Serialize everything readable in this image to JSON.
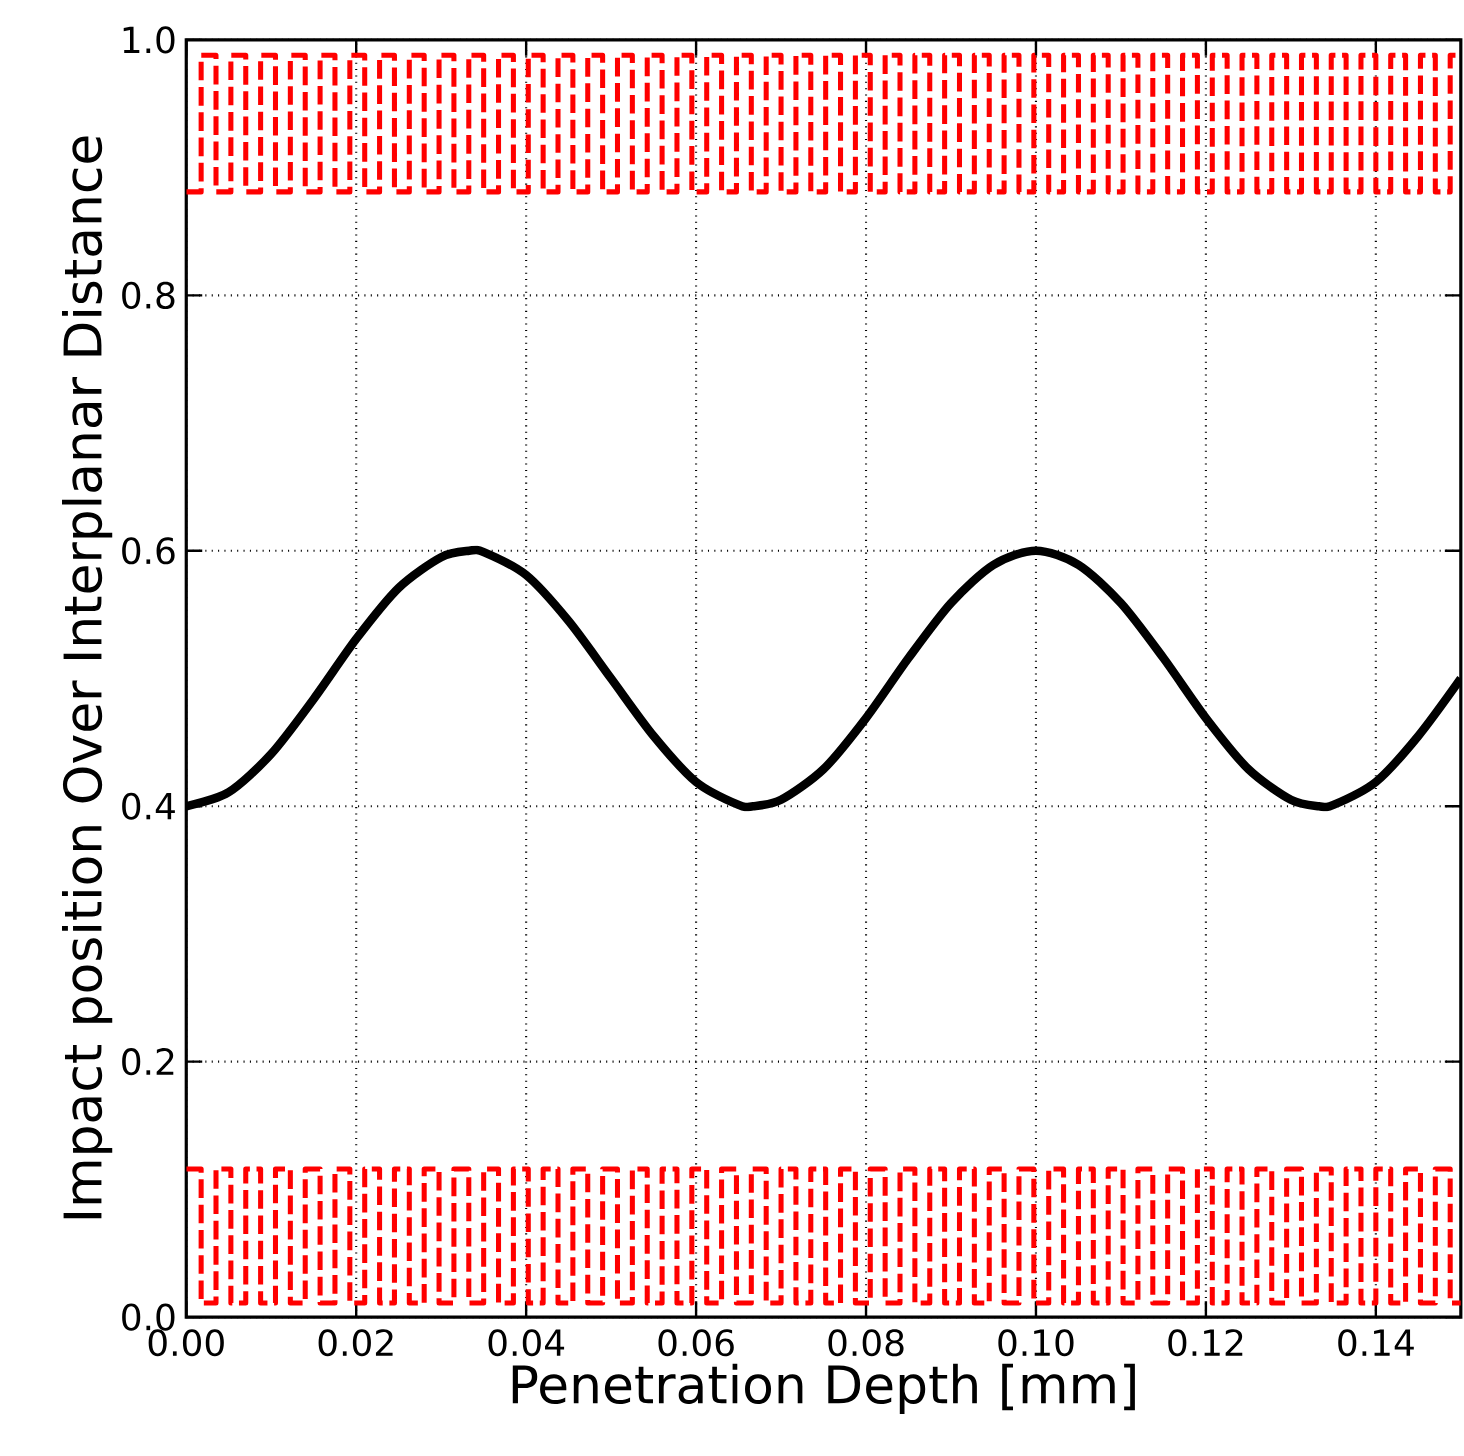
{
  "chart_data": {
    "type": "line",
    "xlabel": "Penetration Depth [mm]",
    "ylabel": "Impact position Over Interplanar Distance",
    "xlim": [
      0,
      0.15
    ],
    "ylim": [
      0,
      1
    ],
    "xticks": [
      {
        "value": 0,
        "label": "0.00"
      },
      {
        "value": 0.02,
        "label": "0.02"
      },
      {
        "value": 0.04,
        "label": "0.04"
      },
      {
        "value": 0.06,
        "label": "0.06"
      },
      {
        "value": 0.08,
        "label": "0.08"
      },
      {
        "value": 0.1,
        "label": "0.10"
      },
      {
        "value": 0.12,
        "label": "0.12"
      },
      {
        "value": 0.14,
        "label": "0.14"
      }
    ],
    "yticks": [
      {
        "value": 0,
        "label": "0.0"
      },
      {
        "value": 0.2,
        "label": "0.2"
      },
      {
        "value": 0.4,
        "label": "0.4"
      },
      {
        "value": 0.6,
        "label": "0.6"
      },
      {
        "value": 0.8,
        "label": "0.8"
      },
      {
        "value": 1,
        "label": "1.0"
      }
    ],
    "grid": true,
    "series": [
      {
        "type": "step",
        "color": "#ff0000",
        "line_style": "dashed",
        "x": [
          0,
          0.00175,
          0.0035,
          0.00525,
          0.007,
          0.00875,
          0.0105,
          0.01225,
          0.014,
          0.01575,
          0.0175,
          0.01925,
          0.021,
          0.02275,
          0.0245,
          0.02625,
          0.028,
          0.02975,
          0.0315,
          0.03325,
          0.035,
          0.03675,
          0.0385,
          0.04025,
          0.042,
          0.04375,
          0.0455,
          0.04725,
          0.049,
          0.05075,
          0.0525,
          0.05425,
          0.056,
          0.05775,
          0.0595,
          0.06125,
          0.063,
          0.06475,
          0.0665,
          0.06825,
          0.07,
          0.07175,
          0.0735,
          0.07525,
          0.077,
          0.07875,
          0.0805,
          0.08225,
          0.084,
          0.08575,
          0.0875,
          0.08925,
          0.091,
          0.09275,
          0.0945,
          0.09625,
          0.098,
          0.09975,
          0.1015,
          0.10325,
          0.105,
          0.10675,
          0.1085,
          0.11025,
          0.112,
          0.11375,
          0.1155,
          0.11725,
          0.119,
          0.12075,
          0.1225,
          0.12425,
          0.126,
          0.12775,
          0.1295,
          0.13125,
          0.133,
          0.13475,
          0.1365,
          0.13825,
          0.14,
          0.14175,
          0.1435,
          0.14525,
          0.147,
          0.14875,
          0.15
        ],
        "values": [
          0.881,
          0.988,
          0.881,
          0.988,
          0.881,
          0.988,
          0.881,
          0.988,
          0.881,
          0.988,
          0.881,
          0.988,
          0.881,
          0.988,
          0.881,
          0.988,
          0.881,
          0.988,
          0.881,
          0.988,
          0.881,
          0.988,
          0.881,
          0.988,
          0.881,
          0.988,
          0.881,
          0.988,
          0.881,
          0.988,
          0.881,
          0.988,
          0.881,
          0.988,
          0.881,
          0.988,
          0.881,
          0.988,
          0.881,
          0.988,
          0.881,
          0.988,
          0.881,
          0.988,
          0.881,
          0.988,
          0.881,
          0.988,
          0.881,
          0.988,
          0.881,
          0.988,
          0.881,
          0.988,
          0.881,
          0.988,
          0.881,
          0.988,
          0.881,
          0.988,
          0.881,
          0.988,
          0.881,
          0.988,
          0.881,
          0.988,
          0.881,
          0.988,
          0.881,
          0.988,
          0.881,
          0.988,
          0.881,
          0.988,
          0.881,
          0.988,
          0.881,
          0.988,
          0.881,
          0.988,
          0.881,
          0.988,
          0.881,
          0.988,
          0.881,
          0.988,
          0.988
        ]
      },
      {
        "type": "step",
        "color": "#ff0000",
        "line_style": "dashed",
        "x": [
          0,
          0.00175,
          0.0035,
          0.00525,
          0.007,
          0.00875,
          0.0105,
          0.01225,
          0.014,
          0.01575,
          0.0175,
          0.01925,
          0.021,
          0.02275,
          0.0245,
          0.02625,
          0.028,
          0.02975,
          0.0315,
          0.03325,
          0.035,
          0.03675,
          0.0385,
          0.04025,
          0.042,
          0.04375,
          0.0455,
          0.04725,
          0.049,
          0.05075,
          0.0525,
          0.05425,
          0.056,
          0.05775,
          0.0595,
          0.06125,
          0.063,
          0.06475,
          0.0665,
          0.06825,
          0.07,
          0.07175,
          0.0735,
          0.07525,
          0.077,
          0.07875,
          0.0805,
          0.08225,
          0.084,
          0.08575,
          0.0875,
          0.08925,
          0.091,
          0.09275,
          0.0945,
          0.09625,
          0.098,
          0.09975,
          0.1015,
          0.10325,
          0.105,
          0.10675,
          0.1085,
          0.11025,
          0.112,
          0.11375,
          0.1155,
          0.11725,
          0.119,
          0.12075,
          0.1225,
          0.12425,
          0.126,
          0.12775,
          0.1295,
          0.13125,
          0.133,
          0.13475,
          0.1365,
          0.13825,
          0.14,
          0.14175,
          0.1435,
          0.14525,
          0.147,
          0.14875,
          0.15
        ],
        "values": [
          0.116,
          0.011,
          0.116,
          0.011,
          0.116,
          0.011,
          0.116,
          0.011,
          0.116,
          0.011,
          0.116,
          0.011,
          0.116,
          0.011,
          0.116,
          0.011,
          0.116,
          0.011,
          0.116,
          0.011,
          0.116,
          0.011,
          0.116,
          0.011,
          0.116,
          0.011,
          0.116,
          0.011,
          0.116,
          0.011,
          0.116,
          0.011,
          0.116,
          0.011,
          0.116,
          0.011,
          0.116,
          0.011,
          0.116,
          0.011,
          0.116,
          0.011,
          0.116,
          0.011,
          0.116,
          0.011,
          0.116,
          0.011,
          0.116,
          0.011,
          0.116,
          0.011,
          0.116,
          0.011,
          0.116,
          0.011,
          0.116,
          0.011,
          0.116,
          0.011,
          0.116,
          0.011,
          0.116,
          0.011,
          0.116,
          0.011,
          0.116,
          0.011,
          0.116,
          0.011,
          0.116,
          0.011,
          0.116,
          0.011,
          0.116,
          0.011,
          0.116,
          0.011,
          0.116,
          0.011,
          0.116,
          0.011,
          0.116,
          0.011,
          0.116,
          0.011,
          0.011
        ]
      },
      {
        "color": "#000000",
        "line_style": "solid",
        "x": [
          0,
          0.005,
          0.01,
          0.015,
          0.02,
          0.025,
          0.03,
          0.0333,
          0.035,
          0.04,
          0.045,
          0.05,
          0.055,
          0.06,
          0.065,
          0.0667,
          0.07,
          0.075,
          0.08,
          0.085,
          0.09,
          0.095,
          0.1,
          0.105,
          0.11,
          0.115,
          0.12,
          0.125,
          0.13,
          0.1333,
          0.135,
          0.14,
          0.145,
          0.15
        ],
        "values": [
          0.4,
          0.411,
          0.441,
          0.484,
          0.531,
          0.571,
          0.595,
          0.6,
          0.599,
          0.581,
          0.545,
          0.5,
          0.455,
          0.419,
          0.401,
          0.4,
          0.405,
          0.429,
          0.469,
          0.516,
          0.559,
          0.589,
          0.6,
          0.589,
          0.559,
          0.516,
          0.469,
          0.429,
          0.405,
          0.4,
          0.401,
          0.419,
          0.455,
          0.5
        ]
      }
    ]
  }
}
